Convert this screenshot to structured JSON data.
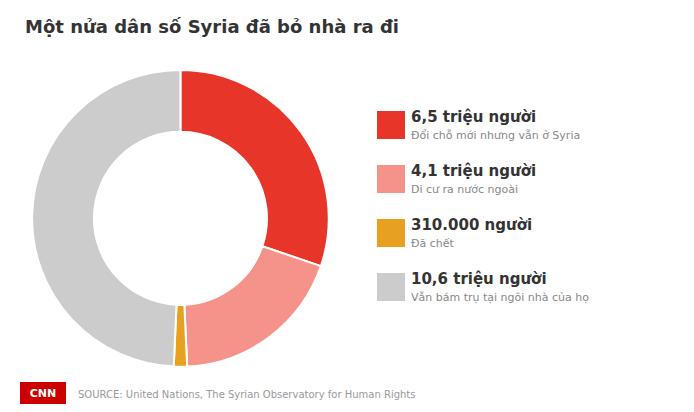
{
  "chart_data": {
    "type": "pie",
    "title": "Một nửa dân số Syria đã bỏ nhà ra đi",
    "categories": [
      "Đổi chỗ mới nhưng vẫn ở Syria",
      "Di cư ra nước ngoài",
      "Đã chết",
      "Vẫn bám trụ tại ngôi nhà của họ"
    ],
    "values": [
      6.5,
      4.1,
      0.31,
      10.6
    ],
    "value_labels": [
      "6,5 triệu người",
      "4,1 triệu người",
      "310.000 người",
      "10,6 triệu người"
    ],
    "colors": [
      "#e8352a",
      "#f5938a",
      "#e8a020",
      "#cccccc"
    ],
    "legend": "right",
    "annotations": [
      {
        "text": "CNN",
        "color": "#cc0000"
      },
      {
        "text": "SOURCE: United Nations, The Syrian Observatory for Human Rights"
      }
    ]
  }
}
